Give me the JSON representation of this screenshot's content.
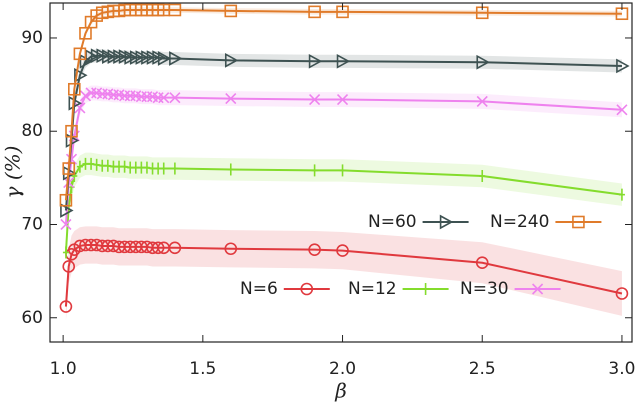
{
  "chart_data": {
    "type": "line",
    "xlabel": "β",
    "ylabel": "γ (%)",
    "x": [
      1.01,
      1.02,
      1.03,
      1.04,
      1.06,
      1.08,
      1.1,
      1.12,
      1.14,
      1.16,
      1.18,
      1.2,
      1.22,
      1.24,
      1.26,
      1.28,
      1.3,
      1.32,
      1.34,
      1.36,
      1.4,
      1.6,
      1.9,
      2.0,
      2.5,
      3.0
    ],
    "series": [
      {
        "name": "N=6",
        "color": "#e0393e",
        "marker": "circle",
        "values": [
          61.2,
          65.5,
          66.8,
          67.3,
          67.7,
          67.8,
          67.8,
          67.8,
          67.7,
          67.7,
          67.7,
          67.6,
          67.6,
          67.6,
          67.6,
          67.6,
          67.6,
          67.5,
          67.5,
          67.5,
          67.5,
          67.4,
          67.3,
          67.2,
          65.9,
          62.6
        ],
        "errors": [
          1.5,
          1.8,
          2,
          2,
          2,
          2,
          2,
          2,
          2,
          2,
          2,
          2,
          2,
          2,
          2,
          2,
          2,
          2,
          2,
          2,
          2,
          2,
          2,
          2,
          2.2,
          2.4
        ]
      },
      {
        "name": "N=12",
        "color": "#84dc2c",
        "marker": "plus",
        "values": [
          67,
          72,
          74,
          75.2,
          76.2,
          76.5,
          76.5,
          76.4,
          76.3,
          76.3,
          76.2,
          76.2,
          76.2,
          76.1,
          76.1,
          76.1,
          76.1,
          76.0,
          76.0,
          76.0,
          76.0,
          75.9,
          75.8,
          75.8,
          75.2,
          73.2
        ],
        "errors": [
          1.2,
          1.2,
          1.2,
          1.2,
          1.2,
          1.2,
          1.2,
          1.2,
          1.2,
          1.2,
          1.2,
          1.2,
          1.2,
          1.2,
          1.2,
          1.2,
          1.2,
          1.2,
          1.2,
          1.2,
          1.2,
          1.2,
          1.2,
          1.2,
          1.2,
          1.2
        ]
      },
      {
        "name": "N=30",
        "color": "#ee82ee",
        "marker": "x",
        "values": [
          70,
          74.5,
          77,
          79.5,
          82.5,
          83.8,
          84.1,
          84.1,
          84.0,
          84.0,
          83.9,
          83.9,
          83.8,
          83.8,
          83.8,
          83.7,
          83.7,
          83.7,
          83.6,
          83.6,
          83.6,
          83.5,
          83.4,
          83.4,
          83.2,
          82.3
        ],
        "errors": [
          0.8,
          0.8,
          0.8,
          0.8,
          0.8,
          0.8,
          0.8,
          0.8,
          0.8,
          0.8,
          0.8,
          0.8,
          0.8,
          0.8,
          0.8,
          0.8,
          0.8,
          0.8,
          0.8,
          0.8,
          0.8,
          0.8,
          0.8,
          0.8,
          0.8,
          0.8
        ]
      },
      {
        "name": "N=60",
        "color": "#3e5252",
        "marker": "triangle",
        "values": [
          71.5,
          75.5,
          79,
          83,
          86,
          87.5,
          88,
          88.1,
          88.1,
          88.0,
          88.0,
          88.0,
          88.0,
          87.9,
          87.9,
          87.9,
          87.9,
          87.9,
          87.9,
          87.8,
          87.8,
          87.6,
          87.5,
          87.5,
          87.4,
          87.0
        ],
        "errors": [
          0.7,
          0.7,
          0.7,
          0.7,
          0.7,
          0.7,
          0.7,
          0.7,
          0.7,
          0.7,
          0.7,
          0.7,
          0.7,
          0.7,
          0.7,
          0.7,
          0.7,
          0.7,
          0.7,
          0.7,
          0.7,
          0.7,
          0.7,
          0.7,
          0.7,
          0.7
        ]
      },
      {
        "name": "N=240",
        "color": "#e07b2a",
        "marker": "square",
        "values": [
          72.6,
          76,
          80,
          84.5,
          88.3,
          90.5,
          91.7,
          92.4,
          92.7,
          92.8,
          92.9,
          92.9,
          93.0,
          93.0,
          93.0,
          93.0,
          93.0,
          93.0,
          93.0,
          93.0,
          93.0,
          92.9,
          92.8,
          92.8,
          92.7,
          92.6
        ],
        "errors": [
          0.3,
          0.3,
          0.3,
          0.3,
          0.3,
          0.3,
          0.3,
          0.3,
          0.3,
          0.3,
          0.3,
          0.3,
          0.3,
          0.3,
          0.3,
          0.3,
          0.3,
          0.3,
          0.3,
          0.3,
          0.3,
          0.3,
          0.3,
          0.3,
          0.3,
          0.3
        ]
      }
    ],
    "xlim": [
      0.953,
      3.036
    ],
    "ylim": [
      57.4,
      93.75
    ],
    "xticks": [
      {
        "value": 1,
        "label": "1.0"
      },
      1.5,
      {
        "value": 2,
        "label": "2.0"
      },
      2.5,
      {
        "value": 3,
        "label": "3.0"
      }
    ],
    "yticks": [
      60,
      70,
      80,
      90
    ]
  }
}
